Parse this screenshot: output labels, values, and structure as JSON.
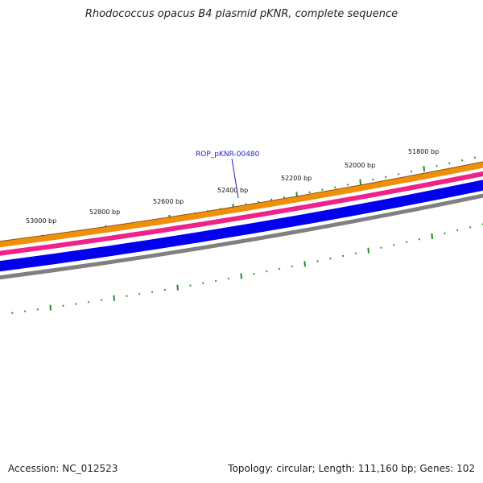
{
  "title": "Rhodococcus opacus B4 plasmid pKNR, complete sequence",
  "footer": {
    "accession": "Accession: NC_012523",
    "summary": "Topology: circular; Length: 111,160 bp; Genes: 102"
  },
  "map": {
    "tick_labels": [
      "53000 bp",
      "52800 bp",
      "52600 bp",
      "52400 bp",
      "52200 bp",
      "52000 bp",
      "51800 bp"
    ],
    "gene_label": "ROP_pKNR-00480",
    "colors": {
      "orange_track": "#f0900a",
      "pink_track": "#ee2288",
      "blue_track": "#0000ee",
      "gray_track": "#808080",
      "ticks": "#2a8a2a",
      "gene_label": "#1f1fd0"
    }
  }
}
